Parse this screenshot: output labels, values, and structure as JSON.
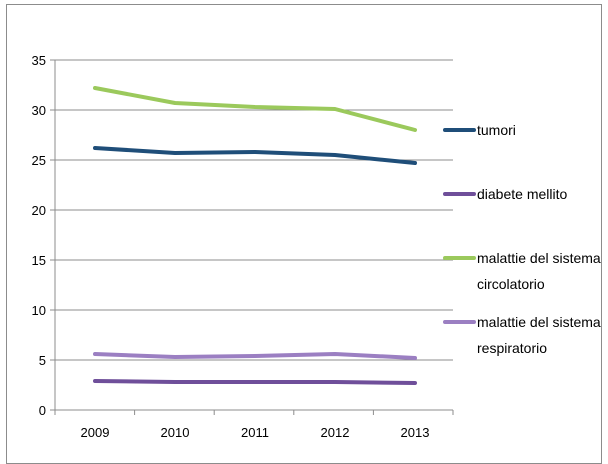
{
  "chart_data": {
    "type": "line",
    "x": [
      "2009",
      "2010",
      "2011",
      "2012",
      "2013"
    ],
    "ylim": [
      0,
      35
    ],
    "yticks": [
      "0",
      "5",
      "10",
      "15",
      "20",
      "25",
      "30",
      "35"
    ],
    "grid": true,
    "legend_position": "right",
    "series": [
      {
        "name": "tumori",
        "legend_lines": [
          "tumori"
        ],
        "color": "#1f4e79",
        "values": [
          26.2,
          25.7,
          25.8,
          25.5,
          24.7
        ]
      },
      {
        "name": "diabete mellito",
        "legend_lines": [
          " diabete mellito"
        ],
        "color": "#6f4f9a",
        "values": [
          2.9,
          2.8,
          2.8,
          2.8,
          2.7
        ]
      },
      {
        "name": "malattie del sistema circolatorio",
        "legend_lines": [
          "malattie del sistema",
          "circolatorio"
        ],
        "color": "#9bc95c",
        "values": [
          32.2,
          30.7,
          30.3,
          30.1,
          28.0
        ]
      },
      {
        "name": "malattie del sistema respiratorio",
        "legend_lines": [
          "malattie del sistema",
          "respiratorio"
        ],
        "color": "#9b7fc2",
        "values": [
          5.6,
          5.3,
          5.4,
          5.6,
          5.2
        ]
      }
    ]
  }
}
